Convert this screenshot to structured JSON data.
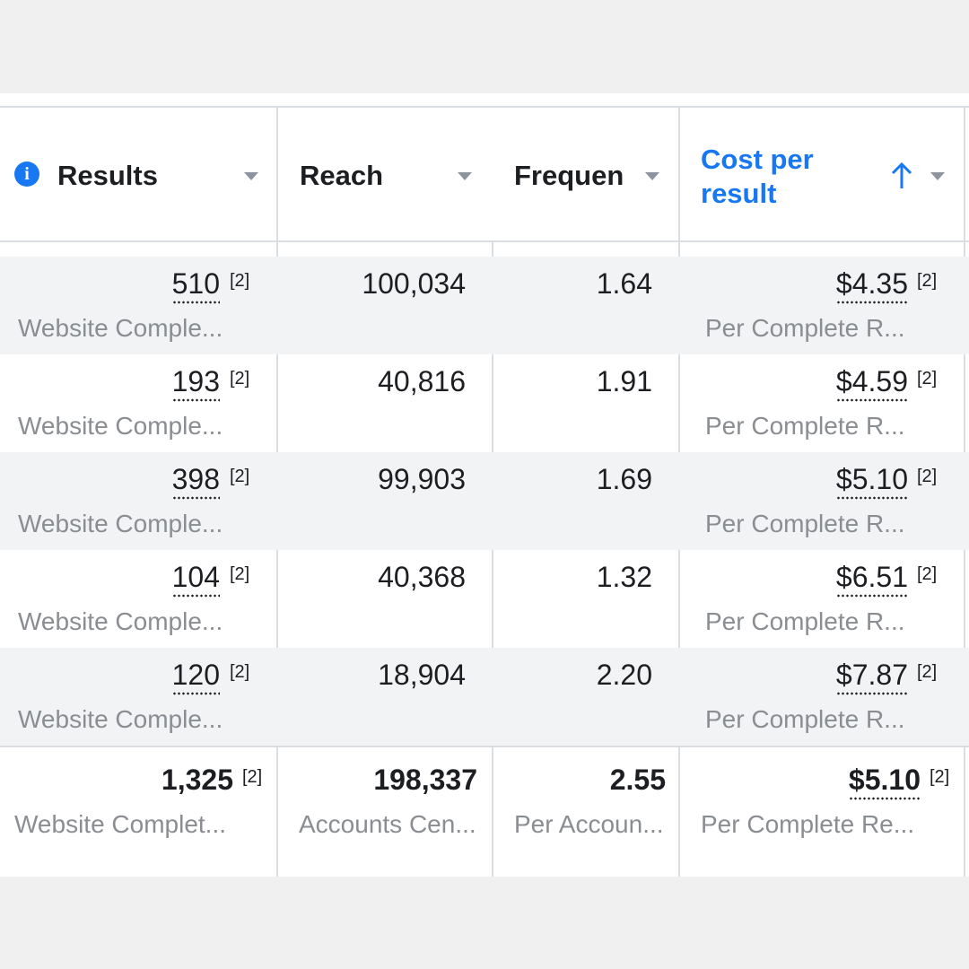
{
  "columns": [
    {
      "label": "Results"
    },
    {
      "label": "Reach"
    },
    {
      "label": "Frequen"
    },
    {
      "label_line1": "Cost per",
      "label_line2": "result"
    }
  ],
  "icons": {
    "info": "info-icon",
    "sort_caret": "chevron-down-icon",
    "sort_asc": "arrow-up-icon",
    "accent_color": "#1877f2"
  },
  "rows": [
    {
      "results": "510",
      "results_note": "[2]",
      "results_sub": "Website Comple...",
      "reach": "100,034",
      "frequency": "1.64",
      "cost": "$4.35",
      "cost_note": "[2]",
      "cost_sub": "Per Complete R..."
    },
    {
      "results": "193",
      "results_note": "[2]",
      "results_sub": "Website Comple...",
      "reach": "40,816",
      "frequency": "1.91",
      "cost": "$4.59",
      "cost_note": "[2]",
      "cost_sub": "Per Complete R..."
    },
    {
      "results": "398",
      "results_note": "[2]",
      "results_sub": "Website Comple...",
      "reach": "99,903",
      "frequency": "1.69",
      "cost": "$5.10",
      "cost_note": "[2]",
      "cost_sub": "Per Complete R..."
    },
    {
      "results": "104",
      "results_note": "[2]",
      "results_sub": "Website Comple...",
      "reach": "40,368",
      "frequency": "1.32",
      "cost": "$6.51",
      "cost_note": "[2]",
      "cost_sub": "Per Complete R..."
    },
    {
      "results": "120",
      "results_note": "[2]",
      "results_sub": "Website Comple...",
      "reach": "18,904",
      "frequency": "2.20",
      "cost": "$7.87",
      "cost_note": "[2]",
      "cost_sub": "Per Complete R..."
    }
  ],
  "totals": {
    "results": "1,325",
    "results_note": "[2]",
    "results_sub": "Website Complet...",
    "reach": "198,337",
    "reach_sub": "Accounts Cen...",
    "frequency": "2.55",
    "frequency_sub": "Per Accoun...",
    "cost": "$5.10",
    "cost_note": "[2]",
    "cost_sub": "Per Complete Re..."
  }
}
